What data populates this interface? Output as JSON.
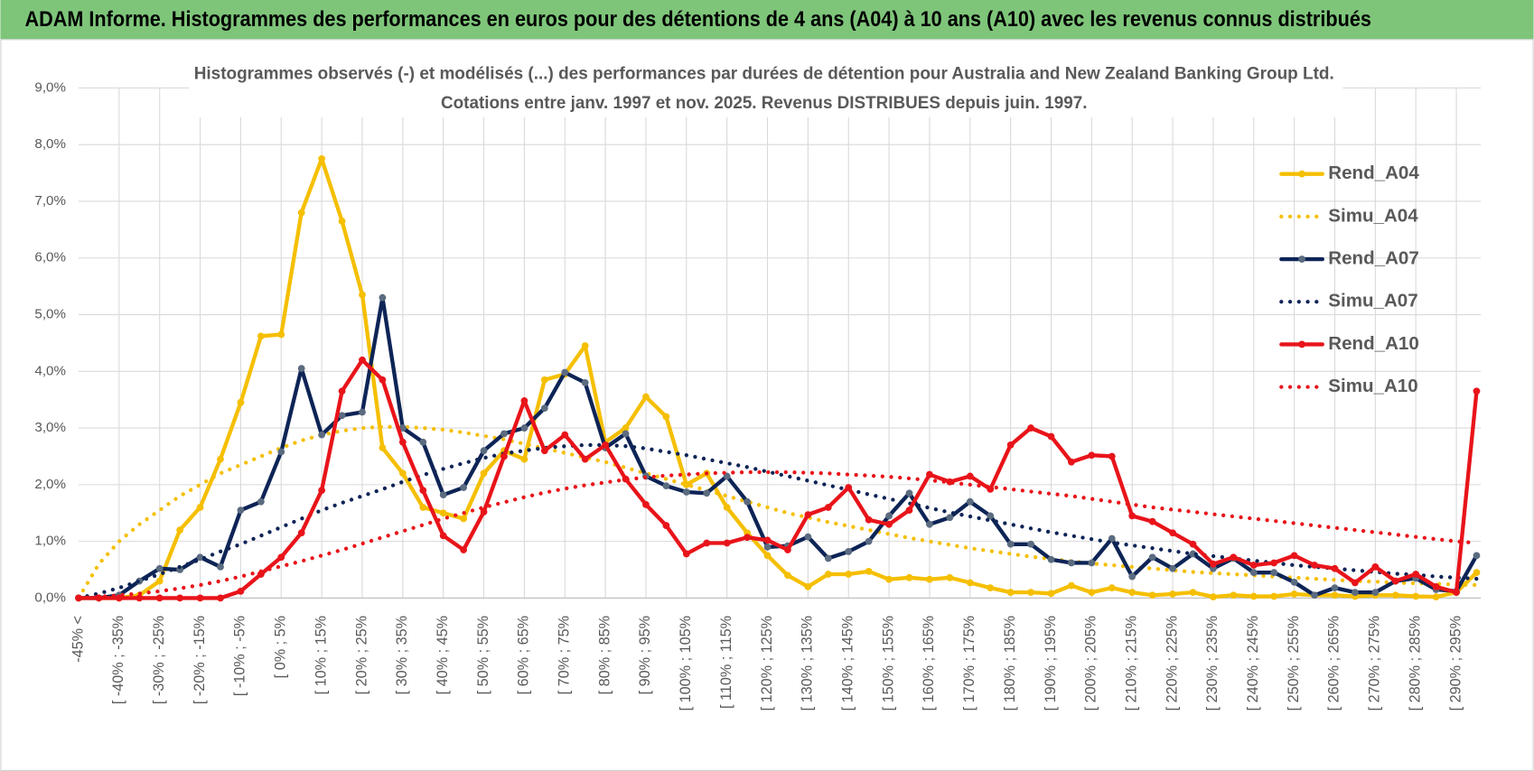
{
  "header": {
    "title": "ADAM Informe. Histogrammes des performances en euros pour des détentions de 4 ans (A04) à 10 ans (A10) avec les revenus connus distribués"
  },
  "chart_data": {
    "type": "line",
    "title": [
      "Histogrammes observés (-) et modélisés (...) des performances par durées de détention pour Australia and New Zealand Banking Group Ltd.",
      "Cotations entre janv. 1997 et nov. 2025. Revenus DISTRIBUES depuis juin. 1997."
    ],
    "categories": [
      "-45% <",
      null,
      "[ -40% ; -35%",
      null,
      "[ -30% ; -25%",
      null,
      "[ -20% ; -15%",
      null,
      "[ -10% ; -5%",
      null,
      "[ 0% ; 5%",
      null,
      "[ 10% ; 15%",
      null,
      "[ 20% ; 25%",
      null,
      "[ 30% ; 35%",
      null,
      "[ 40% ; 45%",
      null,
      "[ 50% ; 55%",
      null,
      "[ 60% ; 65%",
      null,
      "[ 70% ; 75%",
      null,
      "[ 80% ; 85%",
      null,
      "[ 90% ; 95%",
      null,
      "[ 100% ; 105%",
      null,
      "[ 110% ; 115%",
      null,
      "[ 120% ; 125%",
      null,
      "[ 130% ; 135%",
      null,
      "[ 140% ; 145%",
      null,
      "[ 150% ; 155%",
      null,
      "[ 160% ; 165%",
      null,
      "[ 170% ; 175%",
      null,
      "[ 180% ; 185%",
      null,
      "[ 190% ; 195%",
      null,
      "[ 200% ; 205%",
      null,
      "[ 210% ; 215%",
      null,
      "[ 220% ; 225%",
      null,
      "[ 230% ; 235%",
      null,
      "[ 240% ; 245%",
      null,
      "[ 250% ; 255%",
      null,
      "[ 260% ; 265%",
      null,
      "[ 270% ; 275%",
      null,
      "[ 280% ; 285%",
      null,
      "[ 290% ; 295%",
      null
    ],
    "series": [
      {
        "name": "Rend_A04",
        "color": "#f5bf00",
        "style": "solid",
        "values": [
          0,
          0,
          0,
          0.05,
          0.3,
          1.2,
          1.6,
          2.45,
          3.45,
          4.62,
          4.65,
          6.8,
          7.75,
          6.65,
          5.35,
          2.65,
          2.2,
          1.6,
          1.5,
          1.4,
          2.2,
          2.6,
          2.45,
          3.85,
          3.95,
          4.45,
          2.75,
          3.0,
          3.55,
          3.2,
          2.0,
          2.2,
          1.6,
          1.15,
          0.75,
          0.4,
          0.2,
          0.42,
          0.42,
          0.47,
          0.33,
          0.36,
          0.33,
          0.36,
          0.27,
          0.18,
          0.1,
          0.1,
          0.08,
          0.22,
          0.1,
          0.18,
          0.1,
          0.05,
          0.07,
          0.1,
          0.02,
          0.05,
          0.03,
          0.03,
          0.07,
          0.05,
          0.05,
          0.03,
          0.05,
          0.05,
          0.03,
          0.02,
          0.1,
          0.45
        ]
      },
      {
        "name": "Simu_A04",
        "color": "#f5bf00",
        "style": "dotted",
        "values": [
          0,
          0.6,
          1.0,
          1.3,
          1.55,
          1.8,
          2.0,
          2.2,
          2.35,
          2.5,
          2.65,
          2.78,
          2.88,
          2.95,
          3.0,
          3.02,
          3.02,
          3.0,
          2.97,
          2.92,
          2.86,
          2.8,
          2.72,
          2.64,
          2.56,
          2.48,
          2.4,
          2.3,
          2.2,
          2.1,
          2.0,
          1.9,
          1.8,
          1.7,
          1.6,
          1.5,
          1.42,
          1.34,
          1.27,
          1.2,
          1.13,
          1.06,
          1.0,
          0.94,
          0.88,
          0.83,
          0.78,
          0.73,
          0.69,
          0.65,
          0.61,
          0.58,
          0.55,
          0.52,
          0.49,
          0.46,
          0.44,
          0.42,
          0.4,
          0.38,
          0.36,
          0.34,
          0.32,
          0.3,
          0.29,
          0.27,
          0.26,
          0.25,
          0.24,
          0.23
        ]
      },
      {
        "name": "Rend_A07",
        "color": "#0d2456",
        "marker_color": "#5b6b80",
        "style": "solid",
        "values": [
          0,
          0,
          0.05,
          0.3,
          0.52,
          0.5,
          0.72,
          0.55,
          1.55,
          1.7,
          2.58,
          4.05,
          2.88,
          3.22,
          3.28,
          5.3,
          3.0,
          2.75,
          1.82,
          1.95,
          2.6,
          2.9,
          3.0,
          3.35,
          3.98,
          3.8,
          2.65,
          2.9,
          2.15,
          1.98,
          1.87,
          1.85,
          2.15,
          1.7,
          0.9,
          0.92,
          1.08,
          0.7,
          0.82,
          1.0,
          1.45,
          1.85,
          1.3,
          1.42,
          1.7,
          1.45,
          0.95,
          0.95,
          0.68,
          0.62,
          0.62,
          1.05,
          0.38,
          0.72,
          0.52,
          0.78,
          0.52,
          0.7,
          0.45,
          0.45,
          0.28,
          0.05,
          0.18,
          0.1,
          0.1,
          0.3,
          0.35,
          0.15,
          0.12,
          0.75
        ]
      },
      {
        "name": "Simu_A07",
        "color": "#0d2456",
        "style": "dotted",
        "values": [
          0,
          0.08,
          0.18,
          0.3,
          0.42,
          0.55,
          0.68,
          0.82,
          0.95,
          1.1,
          1.25,
          1.4,
          1.55,
          1.68,
          1.8,
          1.92,
          2.05,
          2.17,
          2.28,
          2.38,
          2.47,
          2.55,
          2.6,
          2.65,
          2.68,
          2.7,
          2.7,
          2.68,
          2.64,
          2.58,
          2.52,
          2.45,
          2.38,
          2.31,
          2.23,
          2.15,
          2.07,
          1.99,
          1.91,
          1.83,
          1.75,
          1.67,
          1.59,
          1.51,
          1.44,
          1.37,
          1.3,
          1.23,
          1.16,
          1.1,
          1.04,
          0.98,
          0.93,
          0.88,
          0.83,
          0.78,
          0.74,
          0.7,
          0.66,
          0.62,
          0.58,
          0.55,
          0.52,
          0.49,
          0.46,
          0.43,
          0.41,
          0.38,
          0.36,
          0.34
        ]
      },
      {
        "name": "Rend_A10",
        "color": "#e8141a",
        "style": "solid",
        "values": [
          0,
          0,
          0,
          0,
          0,
          0,
          0,
          0,
          0.12,
          0.42,
          0.72,
          1.15,
          1.9,
          3.65,
          4.2,
          3.85,
          2.75,
          1.9,
          1.1,
          0.85,
          1.52,
          2.5,
          3.48,
          2.6,
          2.88,
          2.45,
          2.7,
          2.1,
          1.65,
          1.28,
          0.78,
          0.97,
          0.97,
          1.07,
          1.02,
          0.85,
          1.47,
          1.6,
          1.95,
          1.38,
          1.3,
          1.55,
          2.18,
          2.05,
          2.15,
          1.92,
          2.7,
          3.0,
          2.85,
          2.4,
          2.52,
          2.5,
          1.45,
          1.35,
          1.15,
          0.95,
          0.6,
          0.72,
          0.58,
          0.62,
          0.75,
          0.58,
          0.52,
          0.27,
          0.55,
          0.3,
          0.42,
          0.2,
          0.1,
          3.65
        ]
      },
      {
        "name": "Simu_A10",
        "color": "#e8141a",
        "style": "dotted",
        "values": [
          0,
          0.02,
          0.05,
          0.08,
          0.12,
          0.17,
          0.23,
          0.3,
          0.38,
          0.47,
          0.56,
          0.65,
          0.75,
          0.85,
          0.96,
          1.07,
          1.18,
          1.29,
          1.4,
          1.5,
          1.6,
          1.69,
          1.78,
          1.86,
          1.93,
          1.99,
          2.04,
          2.09,
          2.13,
          2.16,
          2.18,
          2.2,
          2.21,
          2.22,
          2.22,
          2.22,
          2.21,
          2.2,
          2.18,
          2.16,
          2.14,
          2.11,
          2.08,
          2.04,
          2.0,
          1.96,
          1.92,
          1.88,
          1.84,
          1.8,
          1.75,
          1.7,
          1.65,
          1.6,
          1.56,
          1.52,
          1.48,
          1.44,
          1.4,
          1.36,
          1.32,
          1.28,
          1.24,
          1.2,
          1.16,
          1.12,
          1.08,
          1.04,
          1.0,
          0.97
        ]
      }
    ],
    "ylim": [
      0,
      9
    ],
    "yticks": [
      {
        "value": 0,
        "label": "0,0%"
      },
      {
        "value": 1,
        "label": "1,0%"
      },
      {
        "value": 2,
        "label": "2,0%"
      },
      {
        "value": 3,
        "label": "3,0%"
      },
      {
        "value": 4,
        "label": "4,0%"
      },
      {
        "value": 5,
        "label": "5,0%"
      },
      {
        "value": 6,
        "label": "6,0%"
      },
      {
        "value": 7,
        "label": "7,0%"
      },
      {
        "value": 8,
        "label": "8,0%"
      },
      {
        "value": 9,
        "label": "9,0%"
      }
    ],
    "grid": true,
    "legend": "right"
  }
}
